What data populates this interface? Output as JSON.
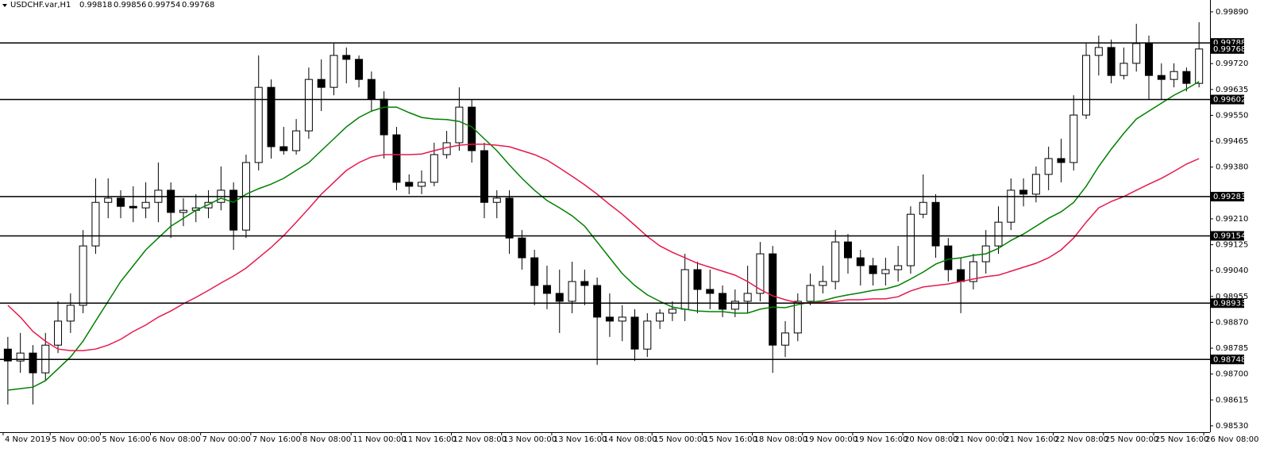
{
  "chart_data": {
    "type": "candlestick",
    "title": "USDCHF.var,H1",
    "header_values": [
      "0.99818",
      "0.99856",
      "0.99754",
      "0.99768"
    ],
    "up_color": "#ffffff",
    "down_color": "#000000",
    "wick_color": "#000000",
    "xlim": [
      -1,
      385
    ],
    "ylim": [
      0.98509,
      0.99929
    ],
    "xticks": [
      {
        "value": 0,
        "label": "4 Nov 2019"
      },
      {
        "value": 15,
        "label": "5 Nov 00:00"
      },
      {
        "value": 31,
        "label": "5 Nov 16:00"
      },
      {
        "value": 47,
        "label": "6 Nov 08:00"
      },
      {
        "value": 63,
        "label": "7 Nov 00:00"
      },
      {
        "value": 79,
        "label": "7 Nov 16:00"
      },
      {
        "value": 95,
        "label": "8 Nov 08:00"
      },
      {
        "value": 111,
        "label": "11 Nov 00:00"
      },
      {
        "value": 127,
        "label": "11 Nov 16:00"
      },
      {
        "value": 143,
        "label": "12 Nov 08:00"
      },
      {
        "value": 159,
        "label": "13 Nov 00:00"
      },
      {
        "value": 175,
        "label": "13 Nov 16:00"
      },
      {
        "value": 191,
        "label": "14 Nov 08:00"
      },
      {
        "value": 207,
        "label": "15 Nov 00:00"
      },
      {
        "value": 223,
        "label": "15 Nov 16:00"
      },
      {
        "value": 239,
        "label": "18 Nov 08:00"
      },
      {
        "value": 255,
        "label": "19 Nov 00:00"
      },
      {
        "value": 271,
        "label": "19 Nov 16:00"
      },
      {
        "value": 287,
        "label": "20 Nov 08:00"
      },
      {
        "value": 303,
        "label": "21 Nov 00:00"
      },
      {
        "value": 319,
        "label": "21 Nov 16:00"
      },
      {
        "value": 335,
        "label": "22 Nov 08:00"
      },
      {
        "value": 351,
        "label": "25 Nov 00:00"
      },
      {
        "value": 367,
        "label": "25 Nov 16:00"
      },
      {
        "value": 383,
        "label": "26 Nov 08:00"
      }
    ],
    "yticks": [
      {
        "value": 0.9989,
        "label": "0.99890"
      },
      {
        "value": 0.9972,
        "label": "0.99720"
      },
      {
        "value": 0.99635,
        "label": "0.99635"
      },
      {
        "value": 0.9955,
        "label": "0.99550"
      },
      {
        "value": 0.99465,
        "label": "0.99465"
      },
      {
        "value": 0.9938,
        "label": "0.99380"
      },
      {
        "value": 0.9921,
        "label": "0.99210"
      },
      {
        "value": 0.99125,
        "label": "0.99125"
      },
      {
        "value": 0.9904,
        "label": "0.99040"
      },
      {
        "value": 0.98955,
        "label": "0.98955"
      },
      {
        "value": 0.9887,
        "label": "0.98870"
      },
      {
        "value": 0.98785,
        "label": "0.98785"
      },
      {
        "value": 0.987,
        "label": "0.98700"
      },
      {
        "value": 0.98615,
        "label": "0.98615"
      },
      {
        "value": 0.9853,
        "label": "0.98530"
      }
    ],
    "levels": [
      {
        "value": 0.99788,
        "label": "0.99788"
      },
      {
        "value": 0.99602,
        "label": "0.99602"
      },
      {
        "value": 0.99283,
        "label": "0.99283"
      },
      {
        "value": 0.99154,
        "label": "0.99154"
      },
      {
        "value": 0.98933,
        "label": "0.98933"
      },
      {
        "value": 0.98748,
        "label": "0.98748"
      }
    ],
    "current_price": {
      "value": 0.99768,
      "label": "0.99768"
    },
    "x": [
      1.5,
      5.5,
      9.5,
      13.5,
      17.5,
      21.5,
      25.5,
      29.5,
      33.5,
      37.5,
      41.5,
      45.5,
      49.5,
      53.5,
      57.5,
      61.5,
      65.5,
      69.5,
      73.5,
      77.5,
      81.5,
      85.5,
      89.5,
      93.5,
      97.5,
      101.5,
      105.5,
      109.5,
      113.5,
      117.5,
      121.5,
      125.5,
      129.5,
      133.5,
      137.5,
      141.5,
      145.5,
      149.5,
      153.5,
      157.5,
      161.5,
      165.5,
      169.5,
      173.5,
      177.5,
      181.5,
      185.5,
      189.5,
      193.5,
      197.5,
      201.5,
      205.5,
      209.5,
      213.5,
      217.5,
      221.5,
      225.5,
      229.5,
      233.5,
      237.5,
      241.5,
      245.5,
      249.5,
      253.5,
      257.5,
      261.5,
      265.5,
      269.5,
      273.5,
      277.5,
      281.5,
      285.5,
      289.5,
      293.5,
      297.5,
      301.5,
      305.5,
      309.5,
      313.5,
      317.5,
      321.5,
      325.5,
      329.5,
      333.5,
      337.5,
      341.5,
      345.5,
      349.5,
      353.5,
      357.5,
      361.5,
      365.5,
      369.5,
      373.5,
      377.5,
      381.5
    ],
    "open": [
      0.98782,
      0.98743,
      0.98769,
      0.98704,
      0.98795,
      0.98874,
      0.98926,
      0.99121,
      0.99264,
      0.99278,
      0.99251,
      0.99246,
      0.99264,
      0.99304,
      0.99231,
      0.99238,
      0.99246,
      0.99264,
      0.99304,
      0.99173,
      0.99395,
      0.99642,
      0.99447,
      0.99434,
      0.99499,
      0.99668,
      0.99642,
      0.99747,
      0.99734,
      0.99668,
      0.99603,
      0.99486,
      0.9933,
      0.99317,
      0.9933,
      0.99421,
      0.9946,
      0.99577,
      0.99434,
      0.99264,
      0.99278,
      0.99147,
      0.99082,
      0.98991,
      0.98965,
      0.98939,
      0.99004,
      0.98991,
      0.98887,
      0.98874,
      0.98887,
      0.98782,
      0.98874,
      0.989,
      0.98913,
      0.99043,
      0.98978,
      0.98965,
      0.98913,
      0.98939,
      0.98965,
      0.99095,
      0.98795,
      0.98835,
      0.98939,
      0.98991,
      0.99004,
      0.99134,
      0.99082,
      0.99056,
      0.9903,
      0.99043,
      0.99056,
      0.99225,
      0.99264,
      0.99121,
      0.99043,
      0.99004,
      0.99069,
      0.99121,
      0.99199,
      0.99304,
      0.99291,
      0.99356,
      0.99408,
      0.99395,
      0.99551,
      0.99747,
      0.99773,
      0.99681,
      0.99721,
      0.99786,
      0.99681,
      0.99668,
      0.99694,
      0.99655
    ],
    "high": [
      0.98822,
      0.98835,
      0.98795,
      0.98835,
      0.98939,
      0.98965,
      0.99173,
      0.99343,
      0.99343,
      0.99304,
      0.99317,
      0.9933,
      0.99395,
      0.9933,
      0.99278,
      0.99291,
      0.99304,
      0.99382,
      0.9933,
      0.99421,
      0.99747,
      0.99668,
      0.99512,
      0.99538,
      0.99707,
      0.99734,
      0.99786,
      0.99773,
      0.99747,
      0.99694,
      0.99629,
      0.99512,
      0.99356,
      0.99369,
      0.9946,
      0.99499,
      0.99642,
      0.99603,
      0.9946,
      0.99304,
      0.99304,
      0.99173,
      0.99108,
      0.99056,
      0.99043,
      0.99069,
      0.99043,
      0.99017,
      0.98965,
      0.98926,
      0.98913,
      0.989,
      0.98913,
      0.98939,
      0.99095,
      0.99069,
      0.99043,
      0.98991,
      0.98978,
      0.99056,
      0.99134,
      0.99121,
      0.98874,
      0.98965,
      0.9903,
      0.99056,
      0.99173,
      0.9916,
      0.99108,
      0.99082,
      0.99082,
      0.99121,
      0.99251,
      0.99356,
      0.99291,
      0.99147,
      0.99082,
      0.99095,
      0.99173,
      0.99251,
      0.99343,
      0.99343,
      0.99382,
      0.99447,
      0.99473,
      0.99616,
      0.99786,
      0.99812,
      0.99799,
      0.99773,
      0.99851,
      0.99812,
      0.99721,
      0.99721,
      0.99707,
      0.99856
    ],
    "low": [
      0.986,
      0.98704,
      0.986,
      0.98678,
      0.98769,
      0.98835,
      0.989,
      0.99095,
      0.99212,
      0.99212,
      0.99199,
      0.99212,
      0.99199,
      0.99147,
      0.99186,
      0.99199,
      0.99212,
      0.99238,
      0.99108,
      0.99147,
      0.99369,
      0.99408,
      0.99421,
      0.99421,
      0.99473,
      0.99564,
      0.99616,
      0.99655,
      0.99642,
      0.99564,
      0.99408,
      0.99304,
      0.99291,
      0.99291,
      0.99317,
      0.99408,
      0.99434,
      0.99395,
      0.99212,
      0.99212,
      0.99095,
      0.99043,
      0.98926,
      0.98913,
      0.98835,
      0.989,
      0.98926,
      0.9873,
      0.98822,
      0.98808,
      0.98743,
      0.98756,
      0.98848,
      0.98874,
      0.98874,
      0.989,
      0.98913,
      0.98887,
      0.98887,
      0.989,
      0.98939,
      0.98704,
      0.98756,
      0.98808,
      0.98926,
      0.98965,
      0.98978,
      0.9903,
      0.98991,
      0.98991,
      0.98991,
      0.99004,
      0.9903,
      0.99212,
      0.99082,
      0.99004,
      0.989,
      0.98978,
      0.9903,
      0.99095,
      0.99173,
      0.99251,
      0.99264,
      0.99304,
      0.9933,
      0.99369,
      0.99538,
      0.99681,
      0.99655,
      0.99668,
      0.99694,
      0.99603,
      0.99603,
      0.99642,
      0.99629,
      0.99642
    ],
    "close": [
      0.98743,
      0.98769,
      0.98704,
      0.98795,
      0.98874,
      0.98926,
      0.99121,
      0.99264,
      0.99278,
      0.99251,
      0.99246,
      0.99264,
      0.99304,
      0.99231,
      0.99238,
      0.99246,
      0.99264,
      0.99304,
      0.99173,
      0.99395,
      0.99642,
      0.99447,
      0.99434,
      0.99499,
      0.99668,
      0.99642,
      0.99747,
      0.99734,
      0.99668,
      0.99603,
      0.99486,
      0.9933,
      0.99317,
      0.9933,
      0.99421,
      0.9946,
      0.99577,
      0.99434,
      0.99264,
      0.99278,
      0.99147,
      0.99082,
      0.98991,
      0.98965,
      0.98939,
      0.99004,
      0.98991,
      0.98887,
      0.98874,
      0.98887,
      0.98782,
      0.98874,
      0.989,
      0.98913,
      0.99043,
      0.98978,
      0.98965,
      0.98913,
      0.98939,
      0.98965,
      0.99095,
      0.98795,
      0.98835,
      0.98939,
      0.98991,
      0.99004,
      0.99134,
      0.99082,
      0.99056,
      0.9903,
      0.99043,
      0.99056,
      0.99225,
      0.99264,
      0.99121,
      0.99043,
      0.99004,
      0.99069,
      0.99121,
      0.99199,
      0.99304,
      0.99291,
      0.99356,
      0.99408,
      0.99395,
      0.99551,
      0.99747,
      0.99773,
      0.99681,
      0.99721,
      0.99786,
      0.99681,
      0.99668,
      0.99694,
      0.99655,
      0.99768
    ],
    "lines": [
      {
        "color": "#008000",
        "values": [
          0.98647,
          0.98652,
          0.98657,
          0.98678,
          0.98717,
          0.98756,
          0.98808,
          0.98874,
          0.98939,
          0.99004,
          0.99056,
          0.99108,
          0.99147,
          0.99186,
          0.99212,
          0.99238,
          0.99257,
          0.99278,
          0.99264,
          0.99291,
          0.99309,
          0.99324,
          0.99343,
          0.99369,
          0.99395,
          0.99434,
          0.99473,
          0.99512,
          0.99543,
          0.99564,
          0.99577,
          0.99577,
          0.99559,
          0.99543,
          0.99538,
          0.99536,
          0.9953,
          0.99512,
          0.99473,
          0.99434,
          0.99387,
          0.99343,
          0.99304,
          0.9927,
          0.99246,
          0.9922,
          0.99186,
          0.99134,
          0.99082,
          0.9903,
          0.98991,
          0.9896,
          0.98939,
          0.9892,
          0.98913,
          0.98907,
          0.98905,
          0.98905,
          0.989,
          0.989,
          0.98913,
          0.9892,
          0.98918,
          0.98928,
          0.98936,
          0.98941,
          0.98952,
          0.9896,
          0.98967,
          0.98975,
          0.9898,
          0.98991,
          0.99012,
          0.99035,
          0.99061,
          0.99077,
          0.99082,
          0.9909,
          0.99095,
          0.99113,
          0.99139,
          0.9916,
          0.99186,
          0.99212,
          0.99233,
          0.99264,
          0.99317,
          0.99382,
          0.99439,
          0.99491,
          0.99538,
          0.99564,
          0.9959,
          0.99616,
          0.99637,
          0.99661
        ]
      },
      {
        "color": "#e6194b",
        "values": [
          0.98926,
          0.98887,
          0.9884,
          0.98808,
          0.98782,
          0.98777,
          0.98777,
          0.98782,
          0.98795,
          0.98814,
          0.9884,
          0.98861,
          0.98887,
          0.98907,
          0.98931,
          0.98952,
          0.98975,
          0.98999,
          0.99022,
          0.99048,
          0.99082,
          0.99116,
          0.99155,
          0.99199,
          0.99244,
          0.99291,
          0.9933,
          0.99369,
          0.99395,
          0.99413,
          0.99421,
          0.99421,
          0.99421,
          0.99423,
          0.99434,
          0.99444,
          0.99452,
          0.99455,
          0.99455,
          0.99452,
          0.99447,
          0.99434,
          0.99421,
          0.99403,
          0.99377,
          0.9935,
          0.99322,
          0.99291,
          0.99257,
          0.99225,
          0.99189,
          0.99152,
          0.99121,
          0.991,
          0.99082,
          0.99064,
          0.99051,
          0.99038,
          0.99025,
          0.99004,
          0.98978,
          0.98957,
          0.98944,
          0.98934,
          0.98934,
          0.98936,
          0.98939,
          0.98944,
          0.98944,
          0.98947,
          0.98947,
          0.98954,
          0.98973,
          0.98986,
          0.98991,
          0.98996,
          0.99004,
          0.99012,
          0.9902,
          0.99025,
          0.99038,
          0.99051,
          0.99064,
          0.99082,
          0.99108,
          0.99147,
          0.99199,
          0.99246,
          0.99267,
          0.99283,
          0.99304,
          0.99324,
          0.99343,
          0.99366,
          0.9939,
          0.99408
        ]
      }
    ]
  }
}
